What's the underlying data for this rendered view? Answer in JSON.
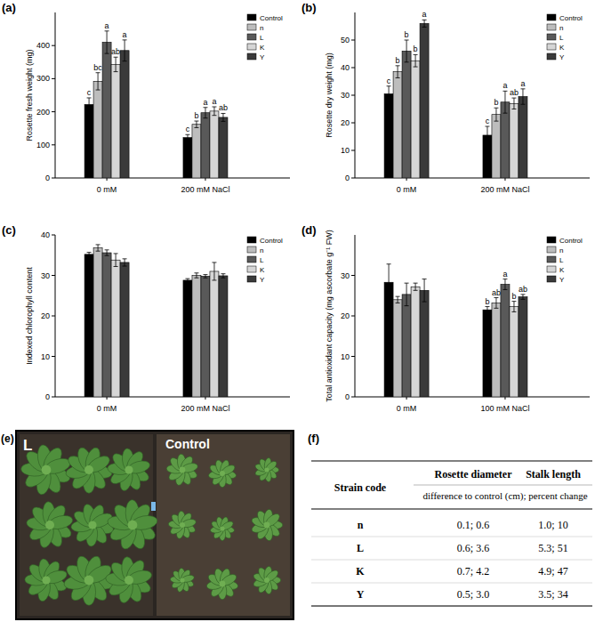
{
  "chart_data": [
    {
      "type": "bar",
      "title": "(a)",
      "y_label": "Rosette fresh weight (mg)",
      "categories": [
        "0 mM",
        "200 mM NaCl"
      ],
      "ylim": [
        0,
        500
      ],
      "yticks": [
        0,
        100,
        200,
        300,
        400
      ],
      "legend": "upper right",
      "series": [
        {
          "name": "Control",
          "color": "#000000",
          "values": [
            222,
            122
          ],
          "error": [
            20,
            9
          ],
          "letters": [
            "c",
            "c"
          ]
        },
        {
          "name": "n",
          "color": "#bdbdbd",
          "values": [
            292,
            162
          ],
          "error": [
            26,
            10
          ],
          "letters": [
            "bc",
            "b"
          ]
        },
        {
          "name": "L",
          "color": "#595959",
          "values": [
            410,
            197
          ],
          "error": [
            34,
            16
          ],
          "letters": [
            "a",
            "a"
          ]
        },
        {
          "name": "K",
          "color": "#d6d6d6",
          "values": [
            343,
            202
          ],
          "error": [
            22,
            13
          ],
          "letters": [
            "ab",
            "a"
          ]
        },
        {
          "name": "Y",
          "color": "#3a3a3a",
          "values": [
            385,
            183
          ],
          "error": [
            32,
            12
          ],
          "letters": [
            "a",
            "ab"
          ]
        }
      ]
    },
    {
      "type": "bar",
      "title": "(b)",
      "y_label": "Rosette dry weight (mg)",
      "categories": [
        "0 mM",
        "200 mM NaCl"
      ],
      "ylim": [
        0,
        60
      ],
      "yticks": [
        0,
        10,
        20,
        30,
        40,
        50
      ],
      "legend": "upper right",
      "series": [
        {
          "name": "Control",
          "color": "#000000",
          "values": [
            30.5,
            15.5
          ],
          "error": [
            2.8,
            3.2
          ],
          "letters": [
            "c",
            "c"
          ]
        },
        {
          "name": "n",
          "color": "#bdbdbd",
          "values": [
            38.5,
            23
          ],
          "error": [
            2.2,
            2.4
          ],
          "letters": [
            "b",
            "b"
          ]
        },
        {
          "name": "L",
          "color": "#595959",
          "values": [
            46,
            27.5
          ],
          "error": [
            4,
            4
          ],
          "letters": [
            "b",
            "a"
          ]
        },
        {
          "name": "K",
          "color": "#d6d6d6",
          "values": [
            42.5,
            27
          ],
          "error": [
            2.2,
            2
          ],
          "letters": [
            "b",
            "ab"
          ]
        },
        {
          "name": "Y",
          "color": "#3a3a3a",
          "values": [
            56,
            29.5
          ],
          "error": [
            1.3,
            2.8
          ],
          "letters": [
            "a",
            "a"
          ]
        }
      ]
    },
    {
      "type": "bar",
      "title": "(c)",
      "y_label": "Indexed chlorophyll content",
      "categories": [
        "0 mM",
        "200 mM NaCl"
      ],
      "ylim": [
        0,
        40
      ],
      "yticks": [
        0,
        10,
        20,
        30,
        40
      ],
      "legend": "upper right",
      "series": [
        {
          "name": "Control",
          "color": "#000000",
          "values": [
            35.2,
            28.8
          ],
          "error": [
            0.5,
            0.4
          ]
        },
        {
          "name": "n",
          "color": "#bdbdbd",
          "values": [
            36.8,
            30.0
          ],
          "error": [
            0.8,
            0.6
          ]
        },
        {
          "name": "L",
          "color": "#595959",
          "values": [
            35.6,
            29.8
          ],
          "error": [
            0.7,
            0.4
          ]
        },
        {
          "name": "K",
          "color": "#d6d6d6",
          "values": [
            33.8,
            31.0
          ],
          "error": [
            1.6,
            2.2
          ]
        },
        {
          "name": "Y",
          "color": "#3a3a3a",
          "values": [
            33.2,
            29.9
          ],
          "error": [
            0.9,
            0.5
          ]
        }
      ]
    },
    {
      "type": "bar",
      "title": "(d)",
      "y_label": "Total antioxidant capacity (mg ascorbate g⁻¹ FW)",
      "categories": [
        "0 mM",
        "100 mM NaCl"
      ],
      "ylim": [
        0,
        40
      ],
      "yticks": [
        0,
        10,
        20,
        30
      ],
      "legend": "upper right",
      "series": [
        {
          "name": "Control",
          "color": "#000000",
          "values": [
            28.3,
            21.5
          ],
          "error": [
            4.5,
            0.8
          ],
          "letters": [
            null,
            "b"
          ]
        },
        {
          "name": "n",
          "color": "#bdbdbd",
          "values": [
            24,
            23.2
          ],
          "error": [
            0.8,
            1.3
          ],
          "letters": [
            null,
            "ab"
          ]
        },
        {
          "name": "L",
          "color": "#595959",
          "values": [
            25.3,
            27.8
          ],
          "error": [
            2.8,
            1.3
          ],
          "letters": [
            null,
            "a"
          ]
        },
        {
          "name": "K",
          "color": "#d6d6d6",
          "values": [
            27.2,
            22.3
          ],
          "error": [
            0.9,
            1.3
          ],
          "letters": [
            null,
            "b"
          ]
        },
        {
          "name": "Y",
          "color": "#3a3a3a",
          "values": [
            26.3,
            24.7
          ],
          "error": [
            2.8,
            0.6
          ],
          "letters": [
            null,
            "ab"
          ]
        }
      ]
    }
  ],
  "photo": {
    "title": "(e)",
    "labels": [
      "L",
      "Control"
    ]
  },
  "table": {
    "title": "(f)",
    "header": [
      "Strain code",
      "Rosette diameter",
      "Stalk length"
    ],
    "subheader": "difference to control (cm); percent change",
    "rows": [
      [
        "n",
        "0.1; 0.6",
        "1.0; 10"
      ],
      [
        "L",
        "0.6; 3.6",
        "5.3; 51"
      ],
      [
        "K",
        "0.7; 4.2",
        "4.9; 47"
      ],
      [
        "Y",
        "0.5; 3.0",
        "3.5; 34"
      ]
    ]
  }
}
